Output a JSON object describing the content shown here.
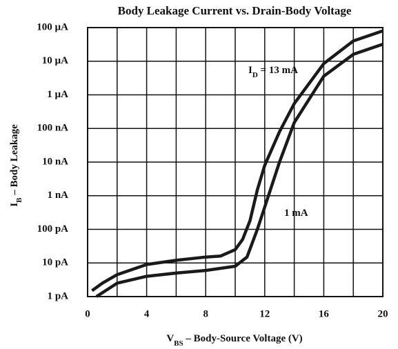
{
  "chart_data": {
    "type": "line",
    "title": "Body Leakage Current vs. Drain-Body Voltage",
    "x_label": [
      "V",
      "BS",
      " – Body-Source Voltage (V)"
    ],
    "y_label": [
      "I",
      "B",
      " – Body Leakage"
    ],
    "log_y": true,
    "grid": true,
    "xlim": [
      0,
      20
    ],
    "xticks": [
      0,
      4,
      8,
      12,
      16,
      20
    ],
    "xminor": [
      2,
      6,
      10,
      14,
      18
    ],
    "ylim": [
      1e-12,
      0.0001
    ],
    "yticks": [
      {
        "value": 1e-12,
        "label": "1 pA"
      },
      {
        "value": 1e-11,
        "label": "10 pA"
      },
      {
        "value": 1e-10,
        "label": "100 pA"
      },
      {
        "value": 1e-09,
        "label": "1 nA"
      },
      {
        "value": 1e-08,
        "label": "10 nA"
      },
      {
        "value": 1e-07,
        "label": "100 nA"
      },
      {
        "value": 1e-06,
        "label": "1 µA"
      },
      {
        "value": 1e-05,
        "label": "10 µA"
      },
      {
        "value": 0.0001,
        "label": "100 µA"
      }
    ],
    "series": [
      {
        "label": [
          "I",
          "D",
          " = 13 mA"
        ],
        "color": "#1a1a1a",
        "x": [
          0.3,
          1,
          2,
          4,
          6,
          8,
          9,
          10,
          10.5,
          11,
          11.5,
          12,
          13,
          14,
          16,
          18,
          20
        ],
        "values": [
          1.5e-12,
          2.5e-12,
          4.5e-12,
          9e-12,
          1.2e-11,
          1.5e-11,
          1.6e-11,
          2.5e-11,
          5e-11,
          1.8e-10,
          1.5e-09,
          8e-09,
          8e-08,
          5.5e-07,
          8.5e-06,
          4e-05,
          8e-05
        ]
      },
      {
        "label": [
          "1 mA"
        ],
        "color": "#1a1a1a",
        "x": [
          0.6,
          2,
          4,
          6,
          8,
          10,
          10.8,
          11.5,
          12,
          13,
          14,
          16,
          18,
          20
        ],
        "values": [
          1e-12,
          2.5e-12,
          4e-12,
          5e-12,
          6e-12,
          8e-12,
          1.5e-11,
          1e-10,
          4.6e-10,
          1e-08,
          1.5e-07,
          3.6e-06,
          1.6e-05,
          3.2e-05
        ]
      }
    ]
  }
}
